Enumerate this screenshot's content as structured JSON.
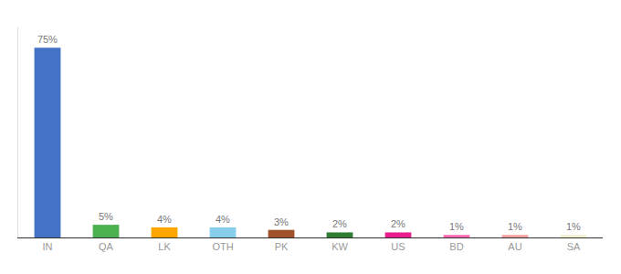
{
  "chart_data": {
    "type": "bar",
    "categories": [
      "IN",
      "QA",
      "LK",
      "OTH",
      "PK",
      "KW",
      "US",
      "BD",
      "AU",
      "SA"
    ],
    "values": [
      75,
      5,
      4,
      4,
      3,
      2,
      2,
      1,
      1,
      1
    ],
    "value_labels": [
      "75%",
      "5%",
      "4%",
      "4%",
      "3%",
      "2%",
      "2%",
      "1%",
      "1%",
      "1%"
    ],
    "colors": [
      "#4472C4",
      "#4CAF50",
      "#FFA500",
      "#87CEEB",
      "#A0522D",
      "#2E7D32",
      "#E91E8C",
      "#FF69B4",
      "#F4A0A0",
      "#F5F0D0"
    ],
    "ylim": [
      0,
      83
    ],
    "data_labels": true,
    "tick_labels": "x",
    "grid": false
  }
}
